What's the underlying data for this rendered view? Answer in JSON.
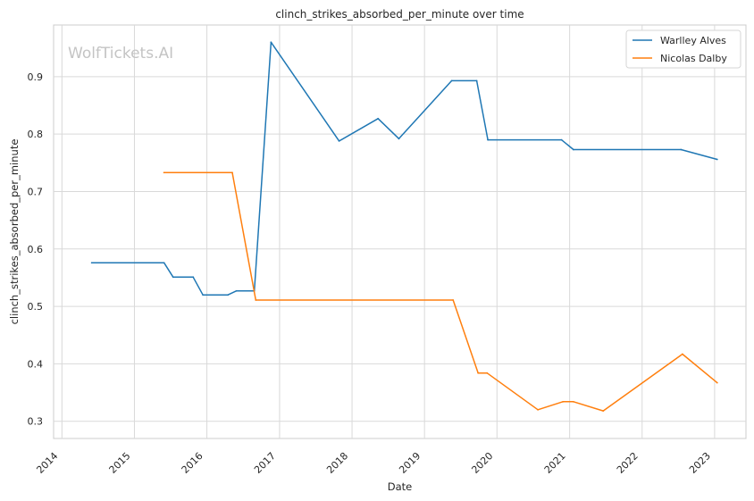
{
  "chart_data": {
    "type": "line",
    "title": "clinch_strikes_absorbed_per_minute over time",
    "xlabel": "Date",
    "ylabel": "clinch_strikes_absorbed_per_minute",
    "watermark": "WolfTickets.AI",
    "x_axis": "date",
    "xlim": [
      "2013-11-20",
      "2023-06-08"
    ],
    "ylim": [
      0.27,
      0.99
    ],
    "x_ticks": [
      "2014",
      "2015",
      "2016",
      "2017",
      "2018",
      "2019",
      "2020",
      "2021",
      "2022",
      "2023"
    ],
    "y_ticks": [
      0.3,
      0.4,
      0.5,
      0.6,
      0.7,
      0.8,
      0.9
    ],
    "y_tick_labels": [
      "0.3",
      "0.4",
      "0.5",
      "0.6",
      "0.7",
      "0.8",
      "0.9"
    ],
    "grid": true,
    "legend_position": "top-right",
    "series": [
      {
        "name": "Warlley Alves",
        "color": "#1f77b4",
        "points": [
          {
            "x": "2014-05-31",
            "y": 0.576
          },
          {
            "x": "2015-05-30",
            "y": 0.576
          },
          {
            "x": "2015-07-15",
            "y": 0.551
          },
          {
            "x": "2015-10-24",
            "y": 0.551
          },
          {
            "x": "2015-12-12",
            "y": 0.52
          },
          {
            "x": "2016-04-16",
            "y": 0.52
          },
          {
            "x": "2016-05-29",
            "y": 0.527
          },
          {
            "x": "2016-08-27",
            "y": 0.527
          },
          {
            "x": "2016-11-19",
            "y": 0.96
          },
          {
            "x": "2017-10-28",
            "y": 0.788
          },
          {
            "x": "2018-05-12",
            "y": 0.827
          },
          {
            "x": "2018-08-25",
            "y": 0.792
          },
          {
            "x": "2019-05-18",
            "y": 0.893
          },
          {
            "x": "2019-09-21",
            "y": 0.893
          },
          {
            "x": "2019-11-16",
            "y": 0.79
          },
          {
            "x": "2020-11-21",
            "y": 0.79
          },
          {
            "x": "2021-01-20",
            "y": 0.773
          },
          {
            "x": "2022-07-16",
            "y": 0.773
          },
          {
            "x": "2023-01-14",
            "y": 0.756
          }
        ]
      },
      {
        "name": "Nicolas Dalby",
        "color": "#ff7f0e",
        "points": [
          {
            "x": "2015-05-30",
            "y": 0.733
          },
          {
            "x": "2016-05-08",
            "y": 0.733
          },
          {
            "x": "2016-09-03",
            "y": 0.511
          },
          {
            "x": "2019-05-25",
            "y": 0.511
          },
          {
            "x": "2019-09-28",
            "y": 0.384
          },
          {
            "x": "2019-11-12",
            "y": 0.384
          },
          {
            "x": "2020-07-25",
            "y": 0.32
          },
          {
            "x": "2020-11-28",
            "y": 0.334
          },
          {
            "x": "2021-01-20",
            "y": 0.334
          },
          {
            "x": "2021-06-19",
            "y": 0.318
          },
          {
            "x": "2022-07-23",
            "y": 0.417
          },
          {
            "x": "2023-01-14",
            "y": 0.367
          }
        ]
      }
    ]
  }
}
